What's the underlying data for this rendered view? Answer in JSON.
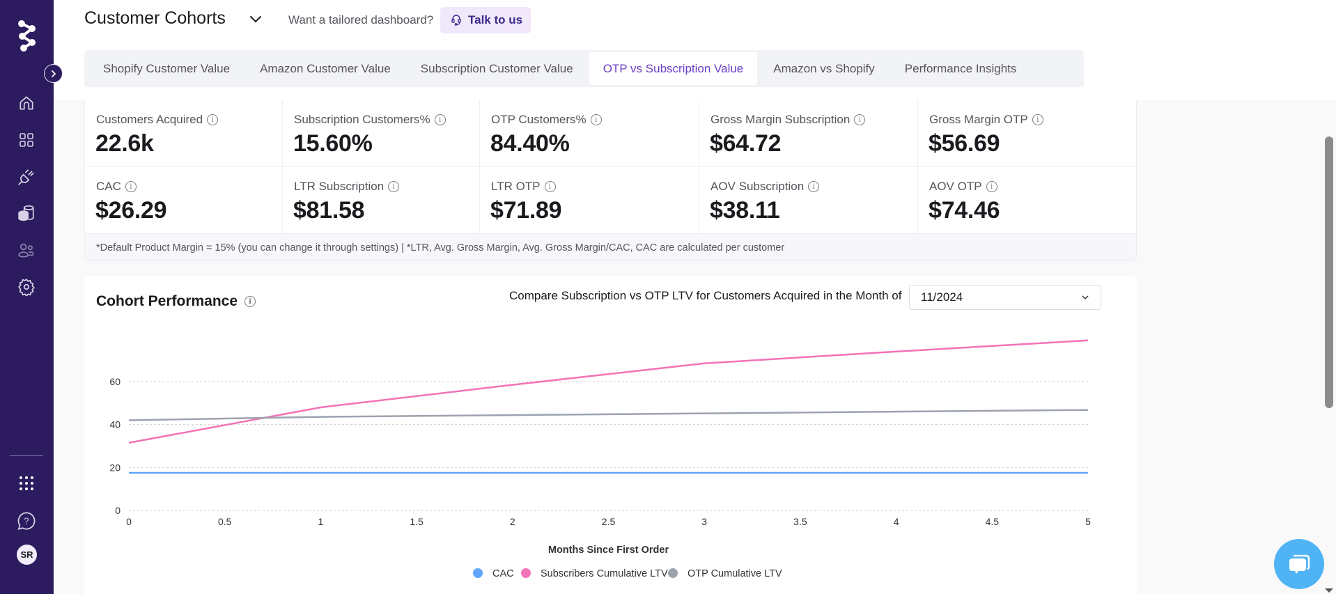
{
  "sidebar": {
    "nav_items": [
      {
        "name": "home",
        "icon": "home-icon"
      },
      {
        "name": "dashboards",
        "icon": "grid-icon"
      },
      {
        "name": "integrations",
        "icon": "plug-icon"
      },
      {
        "name": "data",
        "icon": "database-icon"
      },
      {
        "name": "users",
        "icon": "users-icon"
      },
      {
        "name": "settings",
        "icon": "gear-icon"
      }
    ],
    "bottom_items": [
      {
        "name": "apps",
        "icon": "apps-grid-icon"
      },
      {
        "name": "help",
        "icon": "help-chat-icon"
      }
    ],
    "avatar_initials": "SR",
    "bg_color": "#2c1b5e"
  },
  "header": {
    "title": "Customer Cohorts",
    "tailored_text": "Want a tailored dashboard?",
    "talk_button": "Talk to us"
  },
  "tabs": [
    {
      "label": "Shopify Customer Value",
      "active": false
    },
    {
      "label": "Amazon Customer Value",
      "active": false
    },
    {
      "label": "Subscription Customer Value",
      "active": false
    },
    {
      "label": "OTP vs Subscription Value",
      "active": true
    },
    {
      "label": "Amazon vs Shopify",
      "active": false
    },
    {
      "label": "Performance Insights",
      "active": false
    }
  ],
  "kpis": [
    {
      "label": "Customers Acquired",
      "value": "22.6k"
    },
    {
      "label": "Subscription Customers%",
      "value": "15.60%"
    },
    {
      "label": "OTP Customers%",
      "value": "84.40%"
    },
    {
      "label": "Gross Margin Subscription",
      "value": "$64.72"
    },
    {
      "label": "Gross Margin OTP",
      "value": "$56.69"
    },
    {
      "label": "CAC",
      "value": "$26.29"
    },
    {
      "label": "LTR Subscription",
      "value": "$81.58"
    },
    {
      "label": "LTR OTP",
      "value": "$71.89"
    },
    {
      "label": "AOV Subscription",
      "value": "$38.11"
    },
    {
      "label": "AOV OTP",
      "value": "$74.46"
    }
  ],
  "footnote": "*Default Product Margin = 15% (you can change it through settings) | *LTR, Avg. Gross Margin, Avg. Gross Margin/CAC, CAC are calculated per customer",
  "cohort": {
    "title": "Cohort Performance",
    "compare_label": "Compare Subscription vs OTP LTV for Customers Acquired in the Month of",
    "selected_month": "11/2024"
  },
  "colors": {
    "accent": "#6b3fc4",
    "cac": "#60a5fa",
    "subscribers": "#f472b6",
    "otp": "#9ca3af",
    "chat": "#4fb3f6"
  },
  "chart_data": {
    "type": "line",
    "title": "Cohort Performance",
    "xlabel": "Months Since First Order",
    "ylabel": "",
    "x": [
      0,
      1,
      2,
      3,
      4,
      5
    ],
    "xlim": [
      0,
      5
    ],
    "ylim": [
      0,
      60
    ],
    "x_ticks": [
      "0",
      "0.5",
      "1",
      "1.5",
      "2",
      "2.5",
      "3",
      "3.5",
      "4",
      "4.5",
      "5"
    ],
    "y_ticks": [
      "0",
      "20",
      "40",
      "60"
    ],
    "grid": true,
    "legend_position": "bottom-center",
    "series": [
      {
        "name": "CAC",
        "color": "#60a5fa",
        "values": [
          17.5,
          17.5,
          17.5,
          17.5,
          17.5,
          17.5
        ]
      },
      {
        "name": "Subscribers Cumulative LTV",
        "color": "#f472b6",
        "values": [
          31.5,
          48,
          58.5,
          68.5,
          74,
          79.2
        ]
      },
      {
        "name": "OTP Cumulative LTV",
        "color": "#9ca3af",
        "values": [
          42,
          43.6,
          44.4,
          45.2,
          46,
          46.8
        ]
      }
    ]
  }
}
